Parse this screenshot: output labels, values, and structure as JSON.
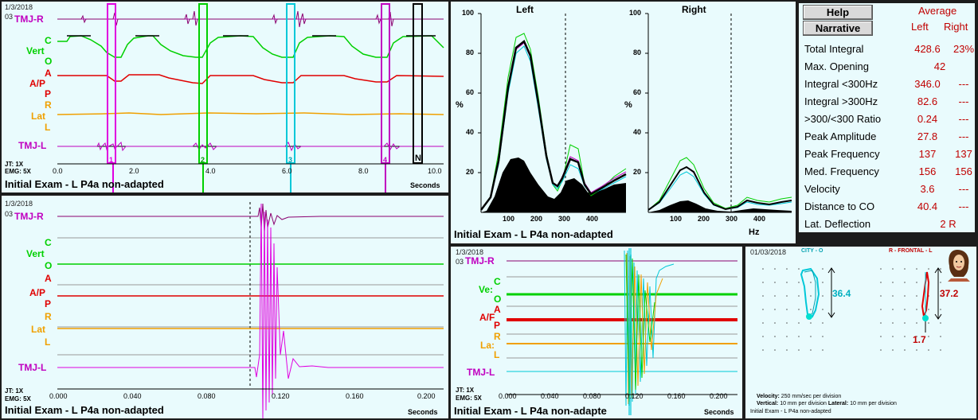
{
  "colors": {
    "bg": "#e9fbfd",
    "tmj": "#c000c0",
    "vert": "#00d000",
    "ap": "#e00000",
    "lat": "#f0a000",
    "black": "#000000",
    "cyan": "#00c8d8"
  },
  "p1": {
    "date": "1/3/2018",
    "row": "03",
    "channels": {
      "tmj_r": "TMJ-R",
      "c": "C",
      "vert": "Vert",
      "o": "O",
      "a": "A",
      "ap": "A/P",
      "p": "P",
      "r": "R",
      "lat": "Lat",
      "l": "L",
      "tmj_l": "TMJ-L"
    },
    "jt": "JT: 1X",
    "emg": "EMG: 5X",
    "ticks": [
      "0.0",
      "2.0",
      "4.0",
      "6.0",
      "8.0",
      "10.0"
    ],
    "markers": [
      "1",
      "2",
      "3",
      "4",
      "N"
    ],
    "seconds": "Seconds",
    "title": "Initial Exam - L P4a non-adapted"
  },
  "p2": {
    "left_title": "Left",
    "right_title": "Right",
    "pct": "%",
    "y_ticks": [
      "100",
      "80",
      "60",
      "40",
      "20"
    ],
    "x_ticks": [
      "100",
      "200",
      "300",
      "400"
    ],
    "hz": "Hz",
    "title": "Initial Exam - L P4a non-adapted"
  },
  "side": {
    "help": "Help",
    "narrative": "Narrative",
    "average": "Average",
    "left": "Left",
    "right": "Right",
    "rows": [
      {
        "name": "Total Integral",
        "left": "428.6",
        "right": "23%"
      },
      {
        "name": "Max. Opening",
        "left": "",
        "right": "42"
      },
      {
        "name": "Integral <300Hz",
        "left": "346.0",
        "right": "---"
      },
      {
        "name": "Integral >300Hz",
        "left": "82.6",
        "right": "---"
      },
      {
        "name": ">300/<300 Ratio",
        "left": "0.24",
        "right": "---"
      },
      {
        "name": "Peak Amplitude",
        "left": "27.8",
        "right": "---"
      },
      {
        "name": "Peak Frequency",
        "left": "137",
        "right": "137"
      },
      {
        "name": "Med. Frequency",
        "left": "156",
        "right": "156"
      },
      {
        "name": "Velocity",
        "left": "3.6",
        "right": "---"
      },
      {
        "name": "Distance to CO",
        "left": "40.4",
        "right": "---"
      },
      {
        "name": "Lat. Deflection",
        "left": "2 R",
        "right": ""
      }
    ]
  },
  "p3": {
    "date": "1/3/2018",
    "row": "03",
    "channels": {
      "tmj_r": "TMJ-R",
      "c": "C",
      "vert": "Vert",
      "o": "O",
      "a": "A",
      "ap": "A/P",
      "p": "P",
      "r": "R",
      "lat": "Lat",
      "l": "L",
      "tmj_l": "TMJ-L"
    },
    "jt": "JT: 1X",
    "emg": "EMG: 5X",
    "ticks": [
      "0.000",
      "0.040",
      "0.080",
      "0.120",
      "0.160",
      "0.200"
    ],
    "seconds": "Seconds",
    "title": "Initial Exam - L P4a non-adapted"
  },
  "p4": {
    "date": "1/3/2018",
    "row": "03",
    "channels": {
      "tmj_r": "TMJ-R",
      "c": "C",
      "vert": "Ve:",
      "o": "O",
      "a": "A",
      "ap": "A/F",
      "p": "P",
      "r": "R",
      "lat": "La:",
      "l": "L",
      "tmj_l": "TMJ-L"
    },
    "jt": "JT: 1X",
    "emg": "EMG: 5X",
    "ticks": [
      "0.000",
      "0.040",
      "0.080",
      "0.120",
      "0.160",
      "0.200"
    ],
    "seconds": "Seconds",
    "title": "Initial Exam - L P4a non-adapte"
  },
  "p5": {
    "date": "01/03/2018",
    "sagittal_label": "CITY - O",
    "frontal_label": "R - FRONTAL - L",
    "sagittal_value": "36.4",
    "frontal_value": "37.2",
    "deflection": "1.7",
    "velocity_label": "Velocity:",
    "velocity_text": "250 mm/sec per division",
    "vertical_label": "Vertical:",
    "vertical_text": "10 mm per division",
    "lateral_label": "Lateral:",
    "lateral_text": "10 mm per division",
    "title": "Initial Exam - L P4a non-adapted"
  }
}
